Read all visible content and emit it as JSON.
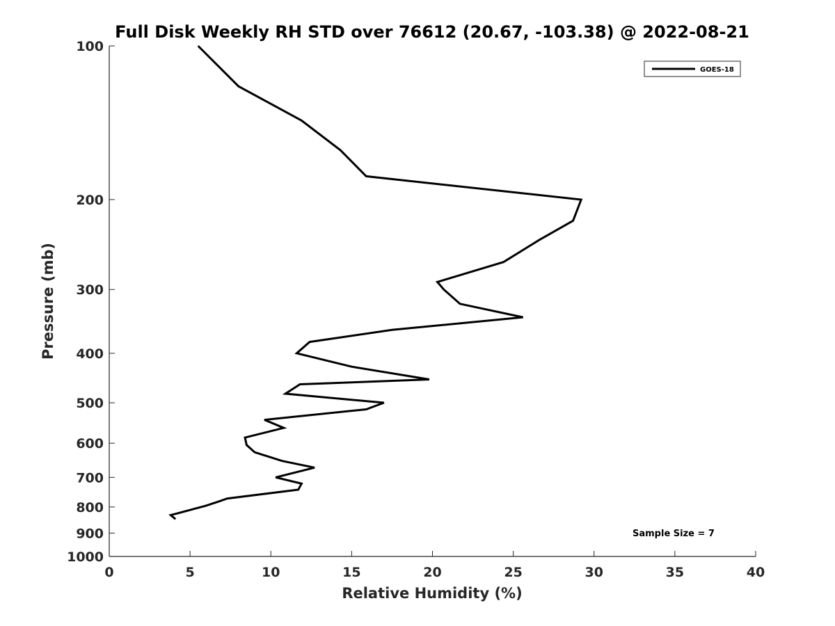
{
  "chart_data": {
    "type": "line",
    "title": "Full Disk Weekly RH STD over 76612 (20.67, -103.38) @ 2022-08-21",
    "xlabel": "Relative Humidity (%)",
    "ylabel": "Pressure (mb)",
    "xlim": [
      0,
      40
    ],
    "ylim": [
      100,
      1000
    ],
    "y_scale": "log",
    "y_reversed": true,
    "x_ticks": [
      "0",
      "5",
      "10",
      "15",
      "20",
      "25",
      "30",
      "35",
      "40"
    ],
    "y_ticks": [
      "100",
      "200",
      "300",
      "400",
      "500",
      "600",
      "700",
      "800",
      "900",
      "1000"
    ],
    "grid": false,
    "legend_position": "top-right",
    "annotation": "Sample Size = 7",
    "series": [
      {
        "name": "GOES-18",
        "color": "#000000",
        "points": [
          {
            "x": 5.5,
            "y": 100
          },
          {
            "x": 8.0,
            "y": 120
          },
          {
            "x": 11.9,
            "y": 140
          },
          {
            "x": 14.3,
            "y": 160
          },
          {
            "x": 15.9,
            "y": 180
          },
          {
            "x": 29.2,
            "y": 200
          },
          {
            "x": 28.7,
            "y": 220
          },
          {
            "x": 26.6,
            "y": 240
          },
          {
            "x": 24.4,
            "y": 265
          },
          {
            "x": 20.3,
            "y": 290
          },
          {
            "x": 20.7,
            "y": 300
          },
          {
            "x": 21.7,
            "y": 320
          },
          {
            "x": 25.6,
            "y": 340
          },
          {
            "x": 17.5,
            "y": 360
          },
          {
            "x": 12.4,
            "y": 380
          },
          {
            "x": 11.6,
            "y": 400
          },
          {
            "x": 15.0,
            "y": 425
          },
          {
            "x": 19.8,
            "y": 450
          },
          {
            "x": 11.8,
            "y": 460
          },
          {
            "x": 10.9,
            "y": 480
          },
          {
            "x": 17.0,
            "y": 500
          },
          {
            "x": 15.9,
            "y": 515
          },
          {
            "x": 9.6,
            "y": 540
          },
          {
            "x": 10.8,
            "y": 560
          },
          {
            "x": 8.4,
            "y": 585
          },
          {
            "x": 8.5,
            "y": 605
          },
          {
            "x": 9.0,
            "y": 625
          },
          {
            "x": 10.7,
            "y": 650
          },
          {
            "x": 12.7,
            "y": 670
          },
          {
            "x": 10.3,
            "y": 700
          },
          {
            "x": 11.9,
            "y": 720
          },
          {
            "x": 11.7,
            "y": 740
          },
          {
            "x": 7.3,
            "y": 770
          },
          {
            "x": 6.8,
            "y": 780
          },
          {
            "x": 6.0,
            "y": 795
          },
          {
            "x": 3.8,
            "y": 830
          },
          {
            "x": 4.1,
            "y": 845
          }
        ]
      }
    ]
  }
}
